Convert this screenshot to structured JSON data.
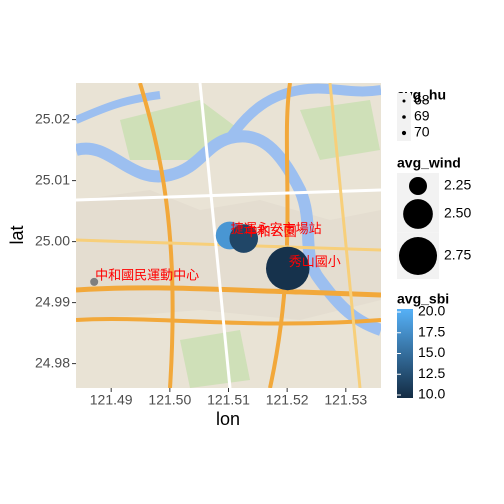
{
  "chart_data": {
    "type": "scatter",
    "x_label": "lon",
    "y_label": "lat",
    "xlim": [
      121.484,
      121.536
    ],
    "ylim": [
      24.976,
      25.026
    ],
    "xticks": [
      121.49,
      {
        "value": 121.5,
        "label": "121.50"
      },
      121.51,
      121.52,
      121.53
    ],
    "yticks": [
      24.98,
      24.99,
      {
        "value": 25,
        "label": "25.00"
      },
      25.01,
      25.02
    ],
    "labels": [
      "捷運永安市場站",
      "中和公園",
      "秀山國小",
      "中和國民運動中心"
    ],
    "label_color": "#ff0000",
    "x": [
      121.5102,
      121.5126,
      121.5201,
      121.4871
    ],
    "y": [
      25.001,
      25.0005,
      24.9956,
      24.9934
    ],
    "avg_wind": [
      2.45,
      2.47,
      2.95,
      null
    ],
    "avg_sbi": [
      18,
      12,
      10.5,
      null
    ],
    "legend": {
      "avg_hu": {
        "title": "avg_hu",
        "breaks": [
          68,
          69,
          70
        ]
      },
      "avg_wind": {
        "title": "avg_wind",
        "breaks": [
          2.25,
          {
            "value": 2.5,
            "label": "2.50"
          },
          2.75
        ]
      },
      "avg_sbi": {
        "title": "avg_sbi",
        "breaks": [
          {
            "value": 20,
            "label": "20.0"
          },
          17.5,
          {
            "value": 15,
            "label": "15.0"
          },
          12.5,
          {
            "value": 10,
            "label": "10.0"
          }
        ],
        "low": "#132B43",
        "high": "#56B1F7",
        "na_color": "#7f7f7f"
      }
    }
  }
}
